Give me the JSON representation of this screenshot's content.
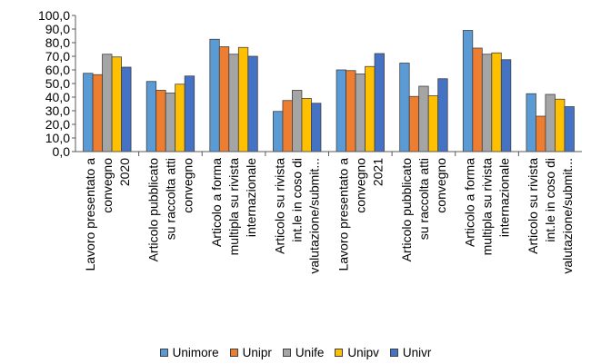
{
  "chart_data": {
    "type": "bar",
    "categories": [
      [
        "Lavoro presentato a",
        "convegno",
        "2020"
      ],
      [
        "Articolo pubblicato",
        "su raccolta atti",
        "convegno"
      ],
      [
        "Articolo a forma",
        "multipla su rivista",
        "internazionale"
      ],
      [
        "Articolo su rivista",
        "int.le in coso di",
        "valutazione/submit..."
      ],
      [
        "Lavoro presentato a",
        "convegno",
        "2021"
      ],
      [
        "Articolo pubblicato",
        "su raccolta atti",
        "convegno"
      ],
      [
        "Articolo a forma",
        "multipla su rivista",
        "internazionale"
      ],
      [
        "Articolo su rivista",
        "int.le in coso di",
        "valutazione/submit..."
      ]
    ],
    "series": [
      {
        "name": "Unimore",
        "color": "#5b9bd5",
        "values": [
          57.5,
          51.5,
          82.5,
          29.5,
          60.0,
          65.0,
          89.0,
          42.5
        ]
      },
      {
        "name": "Unipr",
        "color": "#ed7d31",
        "values": [
          56.5,
          45.0,
          77.0,
          37.5,
          59.5,
          40.5,
          76.0,
          26.0
        ]
      },
      {
        "name": "Unife",
        "color": "#a5a5a5",
        "values": [
          71.5,
          43.0,
          71.5,
          45.0,
          57.0,
          48.0,
          71.5,
          42.0
        ]
      },
      {
        "name": "Unipv",
        "color": "#ffc000",
        "values": [
          69.5,
          49.5,
          76.5,
          39.0,
          62.5,
          41.0,
          72.5,
          38.5
        ]
      },
      {
        "name": "Univr",
        "color": "#4472c4",
        "values": [
          62.0,
          55.5,
          70.0,
          35.5,
          72.0,
          53.5,
          67.5,
          33.0
        ]
      }
    ],
    "ylim": [
      0,
      100
    ],
    "ytick_step": 10,
    "ytick_labels": [
      "0,0",
      "10,0",
      "20,0",
      "30,0",
      "40,0",
      "50,0",
      "60,0",
      "70,0",
      "80,0",
      "90,0",
      "100,0"
    ],
    "grid": false,
    "legend_position": "bottom"
  }
}
